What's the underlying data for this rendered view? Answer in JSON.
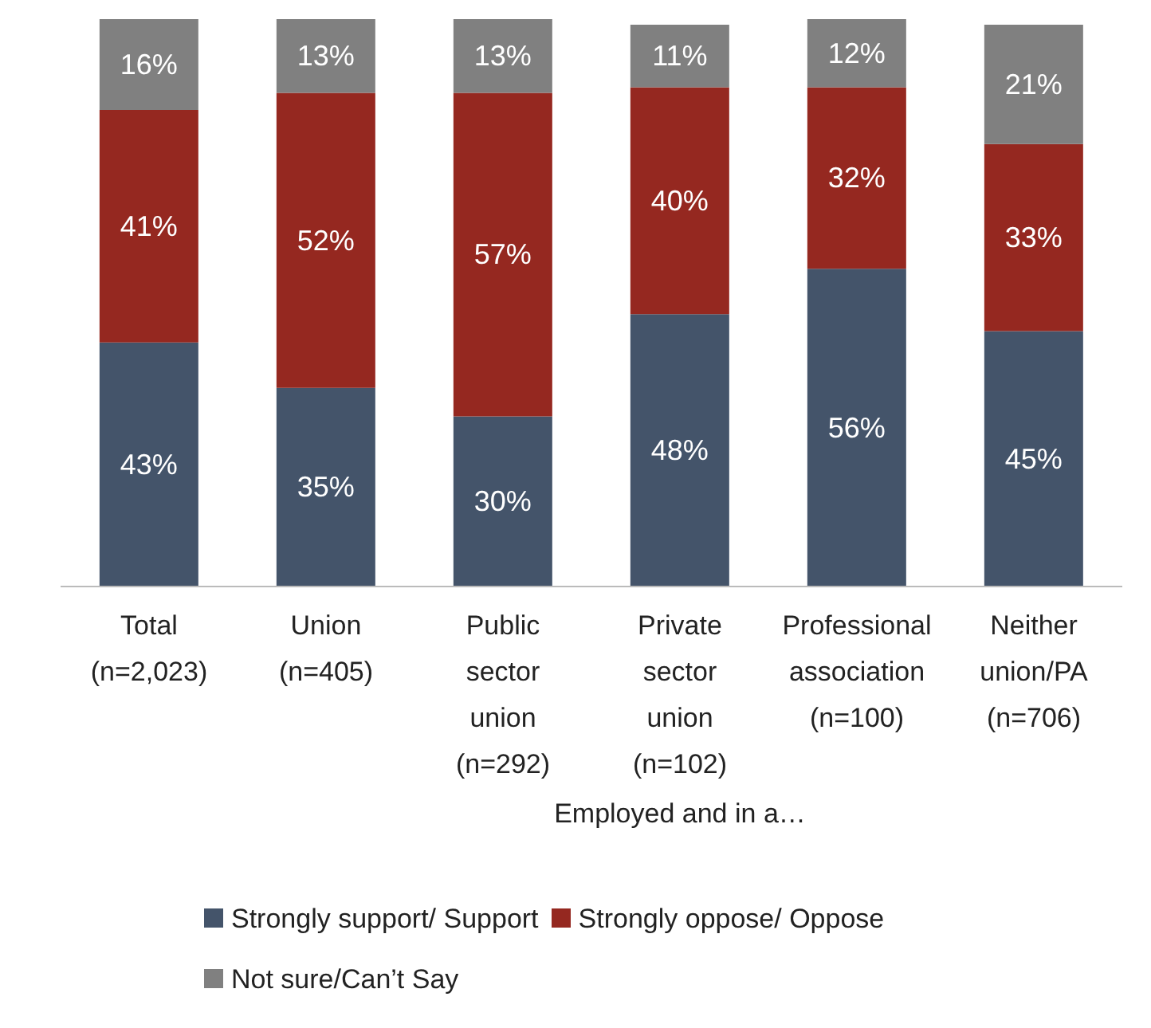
{
  "chart_data": {
    "type": "bar",
    "stacked": true,
    "categories": [
      "Total\n(n=2,023)",
      "Union\n(n=405)",
      "Public\nsector\nunion\n(n=292)",
      "Private\nsector\nunion\n(n=102)",
      "Professional\nassociation\n(n=100)",
      "Neither\nunion/PA\n(n=706)"
    ],
    "series": [
      {
        "name": "Strongly support/ Support",
        "color": "#44546a",
        "values": [
          43,
          35,
          30,
          48,
          56,
          45
        ],
        "value_labels": [
          "43%",
          "35%",
          "30%",
          "48%",
          "56%",
          "45%"
        ]
      },
      {
        "name": "Strongly oppose/ Oppose",
        "color": "#952820",
        "values": [
          41,
          52,
          57,
          40,
          32,
          33
        ],
        "value_labels": [
          "41%",
          "52%",
          "57%",
          "40%",
          "32%",
          "33%"
        ]
      },
      {
        "name": "Not sure/Can’t Say",
        "color": "#808080",
        "values": [
          16,
          13,
          13,
          11,
          12,
          21
        ],
        "value_labels": [
          "16%",
          "13%",
          "13%",
          "11%",
          "12%",
          "21%"
        ]
      }
    ],
    "annotations": [
      "Employed and in a…"
    ],
    "legend": "bottom",
    "grid": false
  }
}
